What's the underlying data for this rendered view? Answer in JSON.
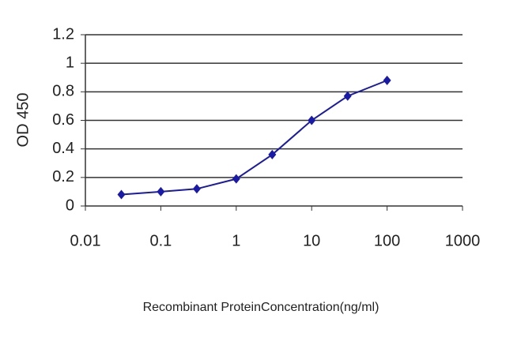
{
  "chart_data": {
    "type": "line",
    "y_label": "OD 450",
    "x_label": "Recombinant ProteinConcentration(ng/ml)",
    "x": [
      0.03,
      0.1,
      0.3,
      1,
      3,
      10,
      30,
      100
    ],
    "series": [
      {
        "name": null,
        "color": "#1a1aa8",
        "values": [
          0.08,
          0.1,
          0.12,
          0.19,
          0.36,
          0.6,
          0.77,
          0.88
        ]
      }
    ],
    "xlim": [
      0.01,
      1000
    ],
    "xticks": [
      0.01,
      0.1,
      1,
      10,
      100,
      1000
    ],
    "xscale": "log",
    "ylim": [
      0,
      1.2
    ],
    "yticks": [
      0,
      0.2,
      0.4,
      0.6,
      0.8,
      1,
      1.2
    ],
    "grid": true
  }
}
